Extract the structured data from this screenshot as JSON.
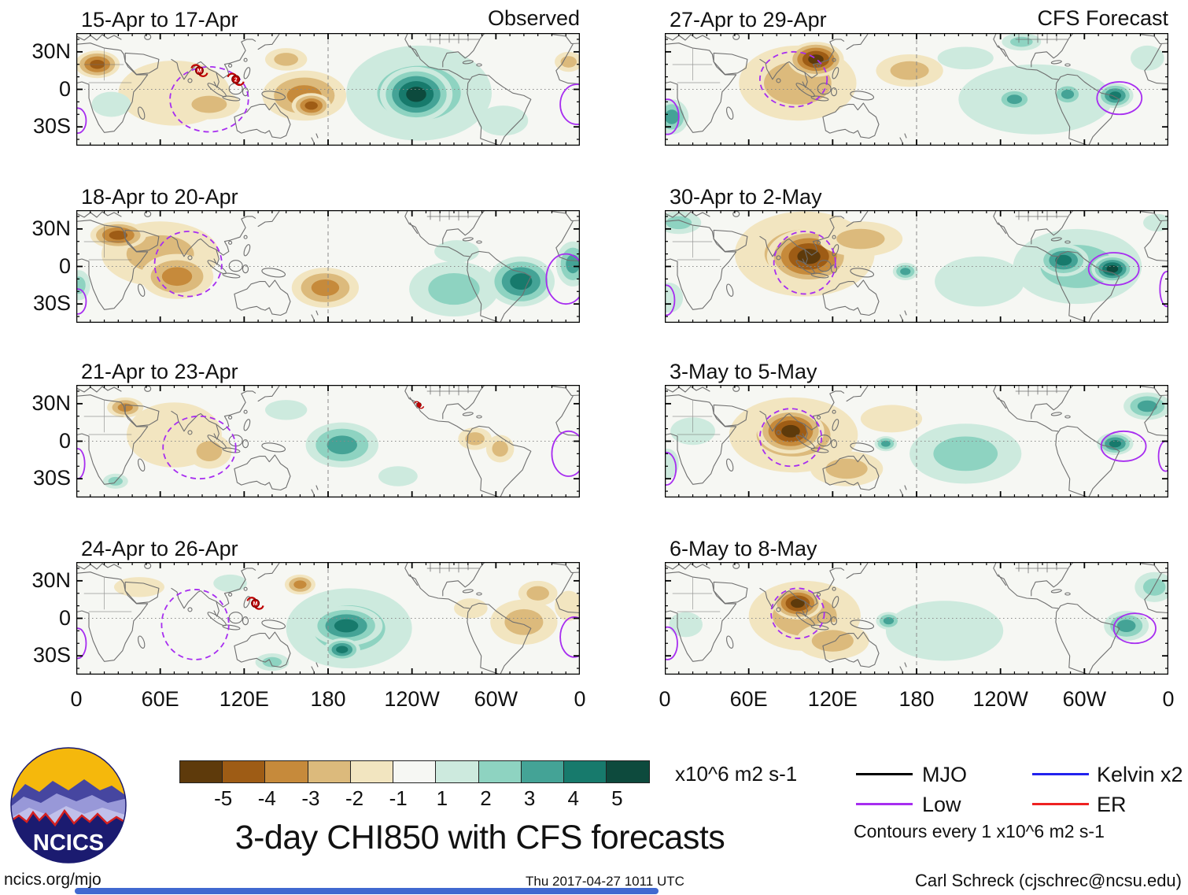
{
  "title": "3-day CHI850 with CFS forecasts",
  "columns": [
    {
      "label": "Observed"
    },
    {
      "label": "CFS Forecast"
    }
  ],
  "map_axes": {
    "x": {
      "labels": [
        "0",
        "60E",
        "120E",
        "180",
        "120W",
        "60W",
        "0"
      ],
      "lons": [
        0,
        60,
        120,
        180,
        240,
        300,
        360
      ]
    },
    "y": {
      "labels": [
        "30N",
        "0",
        "30S"
      ],
      "lats": [
        30,
        0,
        -30
      ]
    }
  },
  "colorbar": {
    "colors": [
      "#5e3a0b",
      "#9e5c15",
      "#c68a3b",
      "#dcba7c",
      "#f2e5c0",
      "#f6f7f3",
      "#cdeade",
      "#8ed3c1",
      "#44a396",
      "#177a6c",
      "#0d4a3d"
    ],
    "labels": [
      "-5",
      "-4",
      "-3",
      "-2",
      "-1",
      "1",
      "2",
      "3",
      "4",
      "5"
    ],
    "unit": "x10^6 m2 s-1"
  },
  "legend": {
    "items": [
      {
        "label": "MJO",
        "color": "#000000"
      },
      {
        "label": "Low",
        "color": "#a72df0"
      },
      {
        "label": "Kelvin x2",
        "color": "#2222ee"
      },
      {
        "label": "ER",
        "color": "#ee2222"
      }
    ],
    "note": "Contours every 1 x10^6 m2 s-1"
  },
  "logo": {
    "text": "NCICS"
  },
  "footer": {
    "left": "ncics.org/mjo",
    "center": "Thu 2017-04-27 1011 UTC",
    "right": "Carl Schreck (cjschrec@ncsu.edu)"
  },
  "chart_data": {
    "type": "heatmap",
    "variable": "3-day mean CHI850 (velocity potential) anomaly with CFS forecasts",
    "unit": "x10^6 m2 s-1",
    "levels": [
      -5,
      -4,
      -3,
      -2,
      -1,
      1,
      2,
      3,
      4,
      5
    ],
    "lon_range": [
      0,
      360
    ],
    "lat_range": [
      -45,
      45
    ],
    "grid": {
      "equator_line": "dotted",
      "dateline_180": "dashed"
    },
    "contour_legend": {
      "MJO": "black",
      "Low": "purple",
      "Kelvin x2": "blue",
      "ER": "red"
    },
    "panels": [
      {
        "period": "15-Apr to 17-Apr",
        "source": "Observed",
        "col": 0,
        "row": 0,
        "cells": [
          [
            15,
            20,
            -4,
            16,
            11
          ],
          [
            70,
            -3,
            -1,
            40,
            26
          ],
          [
            95,
            -12,
            -2,
            22,
            12
          ],
          [
            150,
            24,
            -2,
            15,
            9
          ],
          [
            163,
            -5,
            -3,
            30,
            20
          ],
          [
            168,
            -13,
            -4,
            14,
            10
          ],
          [
            245,
            -3,
            2,
            52,
            38
          ],
          [
            243,
            -4,
            5,
            26,
            22
          ],
          [
            305,
            -25,
            1,
            18,
            12
          ],
          [
            25,
            -12,
            1,
            14,
            10
          ],
          [
            352,
            22,
            -2,
            10,
            8
          ]
        ],
        "contours": [
          [
            95,
            -8,
            28,
            26,
            "dashed"
          ],
          [
            358,
            -12,
            12,
            16,
            "solid"
          ],
          [
            1,
            -25,
            6,
            10,
            "solid"
          ]
        ],
        "cyclones": [
          [
            88,
            15,
            "M"
          ],
          [
            114,
            8,
            "2"
          ]
        ]
      },
      {
        "period": "18-Apr to 20-Apr",
        "source": "Observed",
        "col": 0,
        "row": 1,
        "cells": [
          [
            30,
            25,
            -4,
            20,
            11
          ],
          [
            60,
            10,
            -2,
            42,
            26
          ],
          [
            72,
            -8,
            -3,
            26,
            18
          ],
          [
            178,
            -17,
            -3,
            24,
            16
          ],
          [
            270,
            -18,
            2,
            32,
            22
          ],
          [
            318,
            -12,
            4,
            24,
            20
          ],
          [
            355,
            2,
            3,
            12,
            18
          ],
          [
            2,
            -15,
            2,
            8,
            12
          ],
          [
            272,
            12,
            1,
            16,
            9
          ]
        ],
        "contours": [
          [
            80,
            2,
            24,
            26,
            "dashed"
          ],
          [
            350,
            -10,
            14,
            20,
            "solid"
          ],
          [
            1,
            -28,
            6,
            10,
            "solid"
          ]
        ],
        "cyclones": []
      },
      {
        "period": "21-Apr to 23-Apr",
        "source": "Observed",
        "col": 0,
        "row": 2,
        "cells": [
          [
            35,
            27,
            -3,
            13,
            8
          ],
          [
            70,
            5,
            -1,
            34,
            26
          ],
          [
            95,
            -8,
            -2,
            16,
            14
          ],
          [
            190,
            -3,
            3,
            26,
            18
          ],
          [
            150,
            25,
            1,
            15,
            8
          ],
          [
            230,
            -28,
            1,
            14,
            8
          ],
          [
            285,
            2,
            -2,
            12,
            9
          ],
          [
            303,
            -6,
            -2,
            10,
            11
          ],
          [
            28,
            -32,
            2,
            9,
            6
          ]
        ],
        "contours": [
          [
            88,
            -5,
            26,
            25,
            "dashed"
          ],
          [
            352,
            -10,
            12,
            18,
            "solid"
          ],
          [
            1,
            -18,
            5,
            12,
            "solid"
          ]
        ],
        "cyclones": [
          [
            245,
            29,
            ""
          ]
        ]
      },
      {
        "period": "24-Apr to 26-Apr",
        "source": "Observed",
        "col": 0,
        "row": 3,
        "cells": [
          [
            160,
            27,
            -3,
            11,
            8
          ],
          [
            110,
            28,
            1,
            12,
            7
          ],
          [
            45,
            25,
            -1,
            18,
            8
          ],
          [
            195,
            -8,
            2,
            45,
            32
          ],
          [
            193,
            -6,
            4,
            26,
            16
          ],
          [
            190,
            -25,
            4,
            13,
            9
          ],
          [
            140,
            -35,
            2,
            12,
            7
          ],
          [
            320,
            -3,
            -2,
            24,
            18
          ],
          [
            330,
            20,
            -2,
            14,
            10
          ],
          [
            352,
            10,
            -1,
            10,
            12
          ],
          [
            282,
            8,
            -1,
            12,
            8
          ]
        ],
        "contours": [
          [
            85,
            -5,
            24,
            28,
            "dashed"
          ],
          [
            356,
            -15,
            10,
            16,
            "solid"
          ],
          [
            1,
            -20,
            6,
            12,
            "solid"
          ]
        ],
        "cyclones": [
          [
            128,
            12,
            "M"
          ]
        ]
      },
      {
        "period": "27-Apr to 29-Apr",
        "source": "CFS Forecast",
        "col": 1,
        "row": 0,
        "cells": [
          [
            95,
            5,
            -2,
            42,
            30
          ],
          [
            108,
            24,
            -5,
            20,
            14
          ],
          [
            175,
            15,
            -2,
            24,
            13
          ],
          [
            215,
            25,
            1,
            20,
            9
          ],
          [
            265,
            -8,
            1,
            55,
            28
          ],
          [
            250,
            -8,
            3,
            13,
            9
          ],
          [
            288,
            -4,
            3,
            11,
            9
          ],
          [
            322,
            -5,
            4,
            13,
            10
          ],
          [
            5,
            -22,
            3,
            12,
            14
          ],
          [
            255,
            38,
            2,
            14,
            7
          ],
          [
            345,
            25,
            1,
            12,
            10
          ]
        ],
        "contours": [
          [
            92,
            8,
            24,
            22,
            "dashed"
          ],
          [
            325,
            -7,
            16,
            13,
            "solid"
          ],
          [
            2,
            -22,
            8,
            14,
            "solid"
          ]
        ],
        "cyclones": []
      },
      {
        "period": "30-Apr to 2-May",
        "source": "CFS Forecast",
        "col": 1,
        "row": 1,
        "cells": [
          [
            100,
            10,
            -2,
            50,
            34
          ],
          [
            103,
            8,
            -5,
            30,
            22
          ],
          [
            140,
            22,
            -2,
            30,
            14
          ],
          [
            172,
            -4,
            3,
            9,
            7
          ],
          [
            225,
            -12,
            1,
            32,
            20
          ],
          [
            295,
            0,
            2,
            46,
            30
          ],
          [
            285,
            5,
            4,
            18,
            13
          ],
          [
            320,
            -2,
            5,
            15,
            11
          ],
          [
            10,
            35,
            2,
            16,
            9
          ],
          [
            3,
            -25,
            1,
            10,
            12
          ],
          [
            352,
            35,
            1,
            10,
            7
          ]
        ],
        "contours": [
          [
            100,
            3,
            22,
            25,
            "dashed"
          ],
          [
            321,
            -2,
            18,
            13,
            "solid"
          ],
          [
            1,
            -27,
            6,
            12,
            "solid"
          ],
          [
            359,
            -18,
            5,
            14,
            "solid"
          ]
        ],
        "cyclones": []
      },
      {
        "period": "3-May to 5-May",
        "source": "CFS Forecast",
        "col": 1,
        "row": 2,
        "cells": [
          [
            92,
            5,
            -2,
            46,
            30
          ],
          [
            90,
            8,
            -5,
            24,
            18
          ],
          [
            130,
            -22,
            -2,
            26,
            14
          ],
          [
            162,
            18,
            -1,
            22,
            11
          ],
          [
            158,
            -2,
            3,
            8,
            6
          ],
          [
            215,
            -10,
            2,
            40,
            24
          ],
          [
            322,
            -2,
            4,
            13,
            9
          ],
          [
            345,
            28,
            3,
            17,
            11
          ],
          [
            20,
            8,
            1,
            16,
            11
          ],
          [
            2,
            -18,
            1,
            8,
            12
          ]
        ],
        "contours": [
          [
            90,
            3,
            22,
            23,
            "dashed"
          ],
          [
            328,
            -4,
            16,
            12,
            "solid"
          ],
          [
            1,
            -22,
            7,
            13,
            "solid"
          ],
          [
            358,
            -12,
            5,
            12,
            "solid"
          ]
        ],
        "cyclones": []
      },
      {
        "period": "6-May to 8-May",
        "source": "CFS Forecast",
        "col": 1,
        "row": 3,
        "cells": [
          [
            100,
            2,
            -2,
            40,
            28
          ],
          [
            95,
            12,
            -5,
            18,
            13
          ],
          [
            120,
            -18,
            -2,
            26,
            15
          ],
          [
            160,
            -2,
            3,
            9,
            7
          ],
          [
            200,
            -10,
            1,
            42,
            24
          ],
          [
            330,
            -6,
            3,
            16,
            12
          ],
          [
            350,
            25,
            2,
            14,
            12
          ],
          [
            15,
            -5,
            1,
            12,
            10
          ]
        ],
        "contours": [
          [
            95,
            4,
            19,
            20,
            "dashed"
          ],
          [
            336,
            -8,
            15,
            12,
            "solid"
          ],
          [
            2,
            -20,
            7,
            13,
            "solid"
          ]
        ],
        "cyclones": []
      }
    ]
  }
}
